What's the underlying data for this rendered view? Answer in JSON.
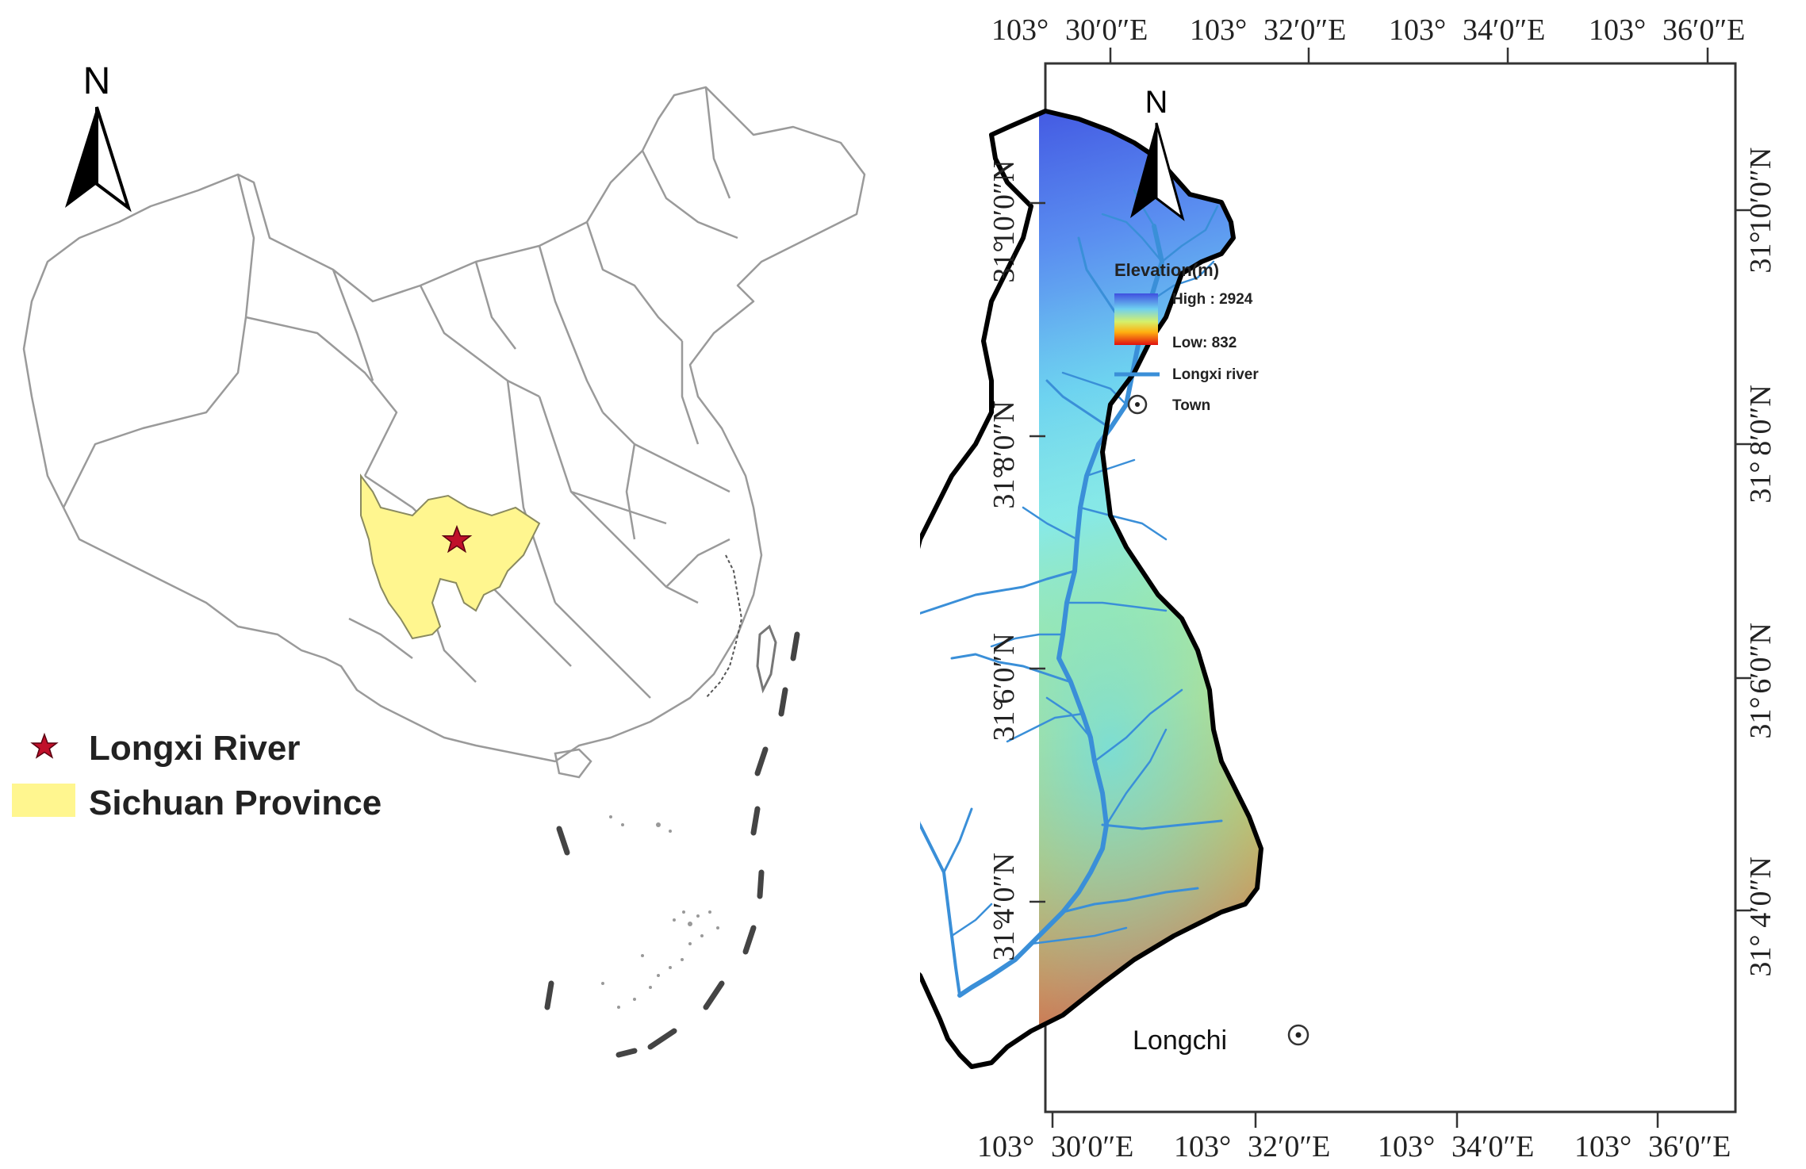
{
  "overview_map": {
    "north_label": "N",
    "legend": [
      {
        "label": "Longxi River",
        "symbol": "star-icon",
        "color": "#c0102a"
      },
      {
        "label": "Sichuan Province",
        "symbol": "polygon-swatch",
        "color": "#fff68f"
      }
    ],
    "province_fill": "#fff68f",
    "boundary_color": "#9a9a9a"
  },
  "basin_map": {
    "north_label": "N",
    "legend_title": "Elevation(m)",
    "elevation_high_label": "High : 2924",
    "elevation_low_label": "Low: 832",
    "river_label": "Longxi river",
    "town_legend_label": "Town",
    "town_name": "Longchi",
    "river_color": "#3a8fd8",
    "longitude_ticks": [
      {
        "deg": "103°",
        "min": "30′0″E"
      },
      {
        "deg": "103°",
        "min": "32′0″E"
      },
      {
        "deg": "103°",
        "min": "34′0″E"
      },
      {
        "deg": "103°",
        "min": "36′0″E"
      }
    ],
    "latitude_ticks": [
      {
        "deg": "31°",
        "min": "10′0″N"
      },
      {
        "deg": "31°",
        "min": "8′0″N"
      },
      {
        "deg": "31°",
        "min": "6′0″N"
      },
      {
        "deg": "31°",
        "min": "4′0″N"
      }
    ]
  }
}
